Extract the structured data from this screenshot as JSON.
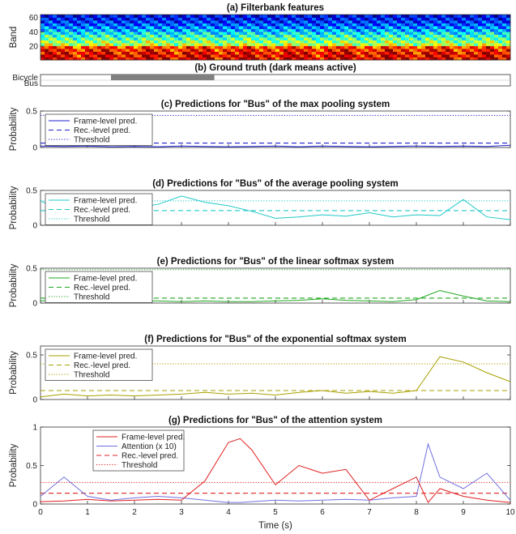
{
  "chart_data": [
    {
      "type": "heatmap",
      "title": "(a) Filterbank features",
      "ylabel": "Band",
      "yticks": [
        "20",
        "40",
        "60"
      ],
      "ylim": [
        1,
        64
      ],
      "xlim": [
        0,
        10
      ],
      "colormap": "jet"
    },
    {
      "type": "bar",
      "title": "(b) Ground truth (dark means active)",
      "categories": [
        "Bicycle",
        "Bus"
      ],
      "xlim": [
        0,
        10
      ],
      "active_segments": [
        {
          "label": "Bicycle",
          "start": 1.5,
          "end": 3.7
        }
      ],
      "bar_color": "#808080"
    },
    {
      "type": "line",
      "title": "(c) Predictions for \"Bus\" of the max pooling system",
      "ylabel": "Probability",
      "xlim": [
        0,
        10
      ],
      "ylim": [
        0,
        0.5
      ],
      "yticks": [
        "0",
        "0.5"
      ],
      "color": "#2020d0",
      "legend": [
        "Frame-level pred.",
        "Rec.-level pred.",
        "Threshold"
      ],
      "x": [
        0,
        0.5,
        1,
        1.5,
        2,
        2.5,
        3,
        3.5,
        4,
        4.5,
        5,
        5.5,
        6,
        6.5,
        7,
        7.5,
        8,
        8.5,
        9,
        9.5,
        10
      ],
      "frame": [
        0.02,
        0.015,
        0.02,
        0.01,
        0.015,
        0.01,
        0.02,
        0.015,
        0.01,
        0.015,
        0.02,
        0.01,
        0.02,
        0.015,
        0.01,
        0.015,
        0.02,
        0.015,
        0.02,
        0.015,
        0.03
      ],
      "rec_level": 0.06,
      "threshold": 0.44
    },
    {
      "type": "line",
      "title": "(d) Predictions for \"Bus\" of the average pooling system",
      "ylabel": "Probability",
      "xlim": [
        0,
        10
      ],
      "ylim": [
        0,
        0.5
      ],
      "yticks": [
        "0",
        "0.5"
      ],
      "color": "#20c8c8",
      "legend": [
        "Frame-level pred.",
        "Rec.-level pred.",
        "Threshold"
      ],
      "x": [
        0,
        0.5,
        1,
        1.5,
        2,
        2.5,
        3,
        3.5,
        4,
        4.5,
        5,
        5.5,
        6,
        6.5,
        7,
        7.5,
        8,
        8.5,
        9,
        9.5,
        10
      ],
      "frame": [
        0.35,
        0.2,
        0.22,
        0.28,
        0.25,
        0.3,
        0.42,
        0.33,
        0.28,
        0.2,
        0.1,
        0.12,
        0.15,
        0.13,
        0.18,
        0.12,
        0.15,
        0.14,
        0.37,
        0.12,
        0.08
      ],
      "rec_level": 0.21,
      "threshold": 0.35
    },
    {
      "type": "line",
      "title": "(e) Predictions for \"Bus\" of the linear softmax system",
      "ylabel": "Probability",
      "xlim": [
        0,
        10
      ],
      "ylim": [
        0,
        0.5
      ],
      "yticks": [
        "0",
        "0.5"
      ],
      "color": "#20a820",
      "legend": [
        "Frame-level pred.",
        "Rec.-level pred.",
        "Threshold"
      ],
      "x": [
        0,
        0.5,
        1,
        1.5,
        2,
        2.5,
        3,
        3.5,
        4,
        4.5,
        5,
        5.5,
        6,
        6.5,
        7,
        7.5,
        8,
        8.5,
        9,
        9.5,
        10
      ],
      "frame": [
        0.03,
        0.05,
        0.02,
        0.04,
        0.03,
        0.03,
        0.02,
        0.03,
        0.02,
        0.02,
        0.03,
        0.04,
        0.06,
        0.04,
        0.03,
        0.02,
        0.05,
        0.18,
        0.1,
        0.03,
        0.02
      ],
      "rec_level": 0.07,
      "threshold": 0.48
    },
    {
      "type": "line",
      "title": "(f) Predictions for \"Bus\" of the exponential softmax system",
      "ylabel": "Probability",
      "xlim": [
        0,
        10
      ],
      "ylim": [
        0,
        0.6
      ],
      "yticks": [
        "0",
        "0.5"
      ],
      "color": "#a8a000",
      "legend": [
        "Frame-level pred.",
        "Rec.-level pred.",
        "Threshold"
      ],
      "x": [
        0,
        0.5,
        1,
        1.5,
        2,
        2.5,
        3,
        3.5,
        4,
        4.5,
        5,
        5.5,
        6,
        6.5,
        7,
        7.5,
        8,
        8.5,
        9,
        9.5,
        10
      ],
      "frame": [
        0.03,
        0.06,
        0.04,
        0.05,
        0.04,
        0.05,
        0.06,
        0.08,
        0.06,
        0.07,
        0.05,
        0.08,
        0.1,
        0.07,
        0.09,
        0.07,
        0.1,
        0.48,
        0.42,
        0.3,
        0.2
      ],
      "rec_level": 0.1,
      "threshold": 0.4
    },
    {
      "type": "line",
      "title": "(g) Predictions for \"Bus\" of the attention system",
      "ylabel": "Probability",
      "xlabel": "Time (s)",
      "xlim": [
        0,
        10
      ],
      "ylim": [
        0,
        1
      ],
      "xticks": [
        "0",
        "1",
        "2",
        "3",
        "4",
        "5",
        "6",
        "7",
        "8",
        "9",
        "10"
      ],
      "yticks": [
        "0",
        "0.5",
        "1"
      ],
      "legend": [
        "Frame-level pred.",
        "Attention (x 10)",
        "Rec.-level pred.",
        "Threshold"
      ],
      "colors": {
        "frame": "#e02020",
        "attention": "#7070e0"
      },
      "x": [
        0,
        0.5,
        1,
        1.5,
        2,
        2.5,
        3,
        3.5,
        4,
        4.25,
        4.5,
        5,
        5.5,
        6,
        6.5,
        7,
        7.5,
        8,
        8.25,
        8.5,
        9,
        9.5,
        10
      ],
      "frame": [
        0.03,
        0.04,
        0.06,
        0.04,
        0.05,
        0.06,
        0.05,
        0.3,
        0.8,
        0.85,
        0.7,
        0.25,
        0.5,
        0.4,
        0.45,
        0.05,
        0.2,
        0.35,
        0.02,
        0.2,
        0.1,
        0.05,
        0.02
      ],
      "attention": [
        0.1,
        0.35,
        0.1,
        0.05,
        0.08,
        0.1,
        0.08,
        0.05,
        0.02,
        0.02,
        0.03,
        0.05,
        0.04,
        0.05,
        0.06,
        0.05,
        0.08,
        0.1,
        0.78,
        0.35,
        0.2,
        0.4,
        0.05
      ],
      "rec_level": 0.14,
      "threshold": 0.28
    }
  ]
}
